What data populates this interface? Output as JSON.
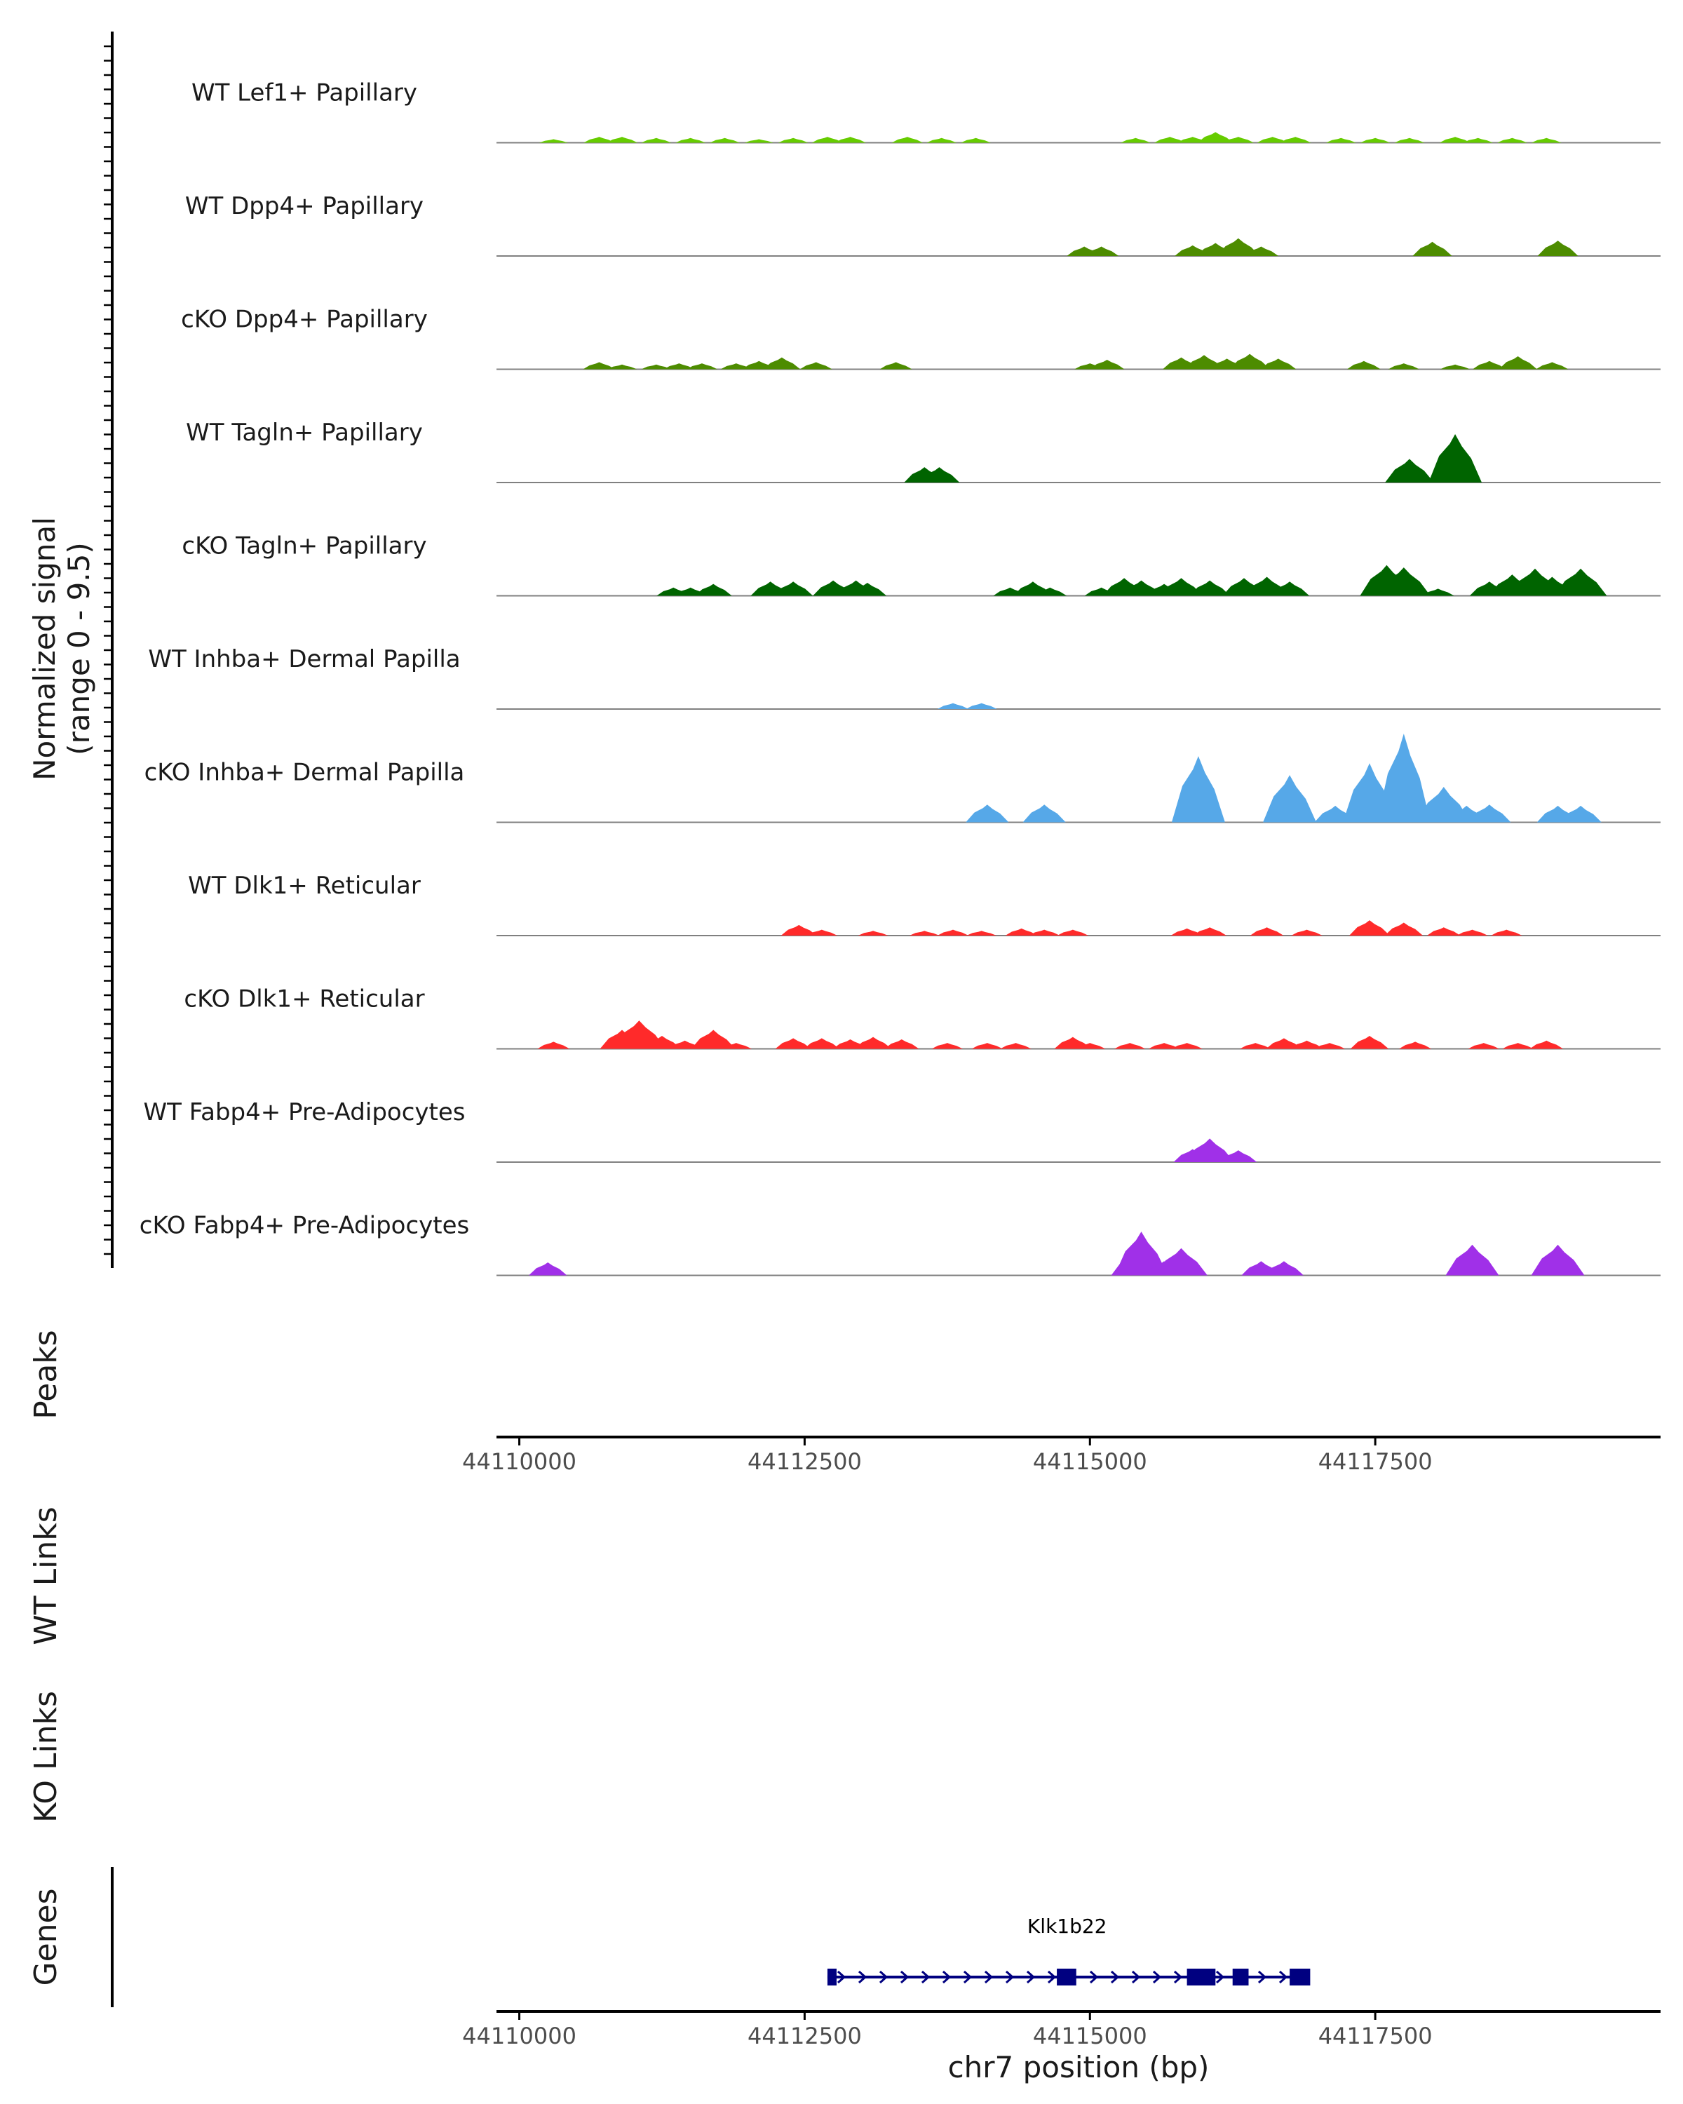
{
  "chart_data": {
    "type": "area",
    "title": "",
    "ylabel_line1": "Normalized signal",
    "ylabel_line2": "(range 0 - 9.5)",
    "ylim": [
      0,
      9.5
    ],
    "xlabel": "chr7 position (bp)",
    "xlim": [
      44109800,
      44120000
    ],
    "xticks": [
      44110000,
      44112500,
      44115000,
      44117500
    ],
    "xtick_labels": [
      "44110000",
      "44112500",
      "44115000",
      "44117500"
    ],
    "tracks": [
      {
        "name": "WT Lef1+ Papillary",
        "color": "#66cc00",
        "peaks": [
          [
            44110300,
            0.3
          ],
          [
            44110700,
            0.5
          ],
          [
            44110900,
            0.5
          ],
          [
            44111200,
            0.4
          ],
          [
            44111500,
            0.4
          ],
          [
            44111800,
            0.4
          ],
          [
            44112100,
            0.3
          ],
          [
            44112400,
            0.4
          ],
          [
            44112700,
            0.5
          ],
          [
            44112900,
            0.5
          ],
          [
            44113400,
            0.5
          ],
          [
            44113700,
            0.4
          ],
          [
            44114000,
            0.4
          ],
          [
            44115400,
            0.4
          ],
          [
            44115700,
            0.5
          ],
          [
            44115900,
            0.5
          ],
          [
            44116100,
            0.9
          ],
          [
            44116300,
            0.5
          ],
          [
            44116600,
            0.5
          ],
          [
            44116800,
            0.5
          ],
          [
            44117200,
            0.4
          ],
          [
            44117500,
            0.4
          ],
          [
            44117800,
            0.4
          ],
          [
            44118200,
            0.5
          ],
          [
            44118400,
            0.4
          ],
          [
            44118700,
            0.4
          ],
          [
            44119000,
            0.4
          ]
        ]
      },
      {
        "name": "WT Dpp4+ Papillary",
        "color": "#4d8c00",
        "peaks": [
          [
            44114950,
            0.8
          ],
          [
            44115100,
            0.8
          ],
          [
            44115900,
            0.9
          ],
          [
            44116100,
            1.1
          ],
          [
            44116300,
            1.5
          ],
          [
            44116500,
            0.8
          ],
          [
            44118000,
            1.2
          ],
          [
            44119100,
            1.3
          ]
        ]
      },
      {
        "name": "cKO Dpp4+ Papillary",
        "color": "#4d8c00",
        "peaks": [
          [
            44110700,
            0.6
          ],
          [
            44110900,
            0.4
          ],
          [
            44111200,
            0.4
          ],
          [
            44111400,
            0.5
          ],
          [
            44111600,
            0.5
          ],
          [
            44111900,
            0.5
          ],
          [
            44112100,
            0.7
          ],
          [
            44112300,
            1.0
          ],
          [
            44112600,
            0.6
          ],
          [
            44113300,
            0.6
          ],
          [
            44115000,
            0.5
          ],
          [
            44115150,
            0.8
          ],
          [
            44115800,
            1.0
          ],
          [
            44116000,
            1.2
          ],
          [
            44116200,
            0.9
          ],
          [
            44116400,
            1.3
          ],
          [
            44116650,
            0.9
          ],
          [
            44117400,
            0.7
          ],
          [
            44117750,
            0.5
          ],
          [
            44118200,
            0.4
          ],
          [
            44118500,
            0.7
          ],
          [
            44118750,
            1.1
          ],
          [
            44119050,
            0.6
          ]
        ]
      },
      {
        "name": "WT Tagln+ Papillary",
        "color": "#006400",
        "peaks": [
          [
            44113550,
            1.3
          ],
          [
            44113680,
            1.3
          ],
          [
            44117800,
            2.0
          ],
          [
            44118200,
            4.1
          ]
        ]
      },
      {
        "name": "cKO Tagln+ Papillary",
        "color": "#006400",
        "peaks": [
          [
            44111350,
            0.7
          ],
          [
            44111500,
            0.7
          ],
          [
            44111700,
            1.0
          ],
          [
            44112200,
            1.2
          ],
          [
            44112400,
            1.2
          ],
          [
            44112750,
            1.3
          ],
          [
            44112950,
            1.3
          ],
          [
            44113050,
            1.1
          ],
          [
            44114300,
            0.7
          ],
          [
            44114500,
            1.2
          ],
          [
            44114650,
            0.7
          ],
          [
            44115100,
            0.7
          ],
          [
            44115300,
            1.5
          ],
          [
            44115450,
            1.3
          ],
          [
            44115650,
            1.0
          ],
          [
            44115800,
            1.5
          ],
          [
            44116050,
            1.3
          ],
          [
            44116350,
            1.5
          ],
          [
            44116550,
            1.6
          ],
          [
            44116750,
            1.2
          ],
          [
            44117600,
            2.6
          ],
          [
            44117750,
            2.4
          ],
          [
            44118050,
            0.6
          ],
          [
            44118500,
            1.2
          ],
          [
            44118700,
            1.8
          ],
          [
            44118900,
            2.3
          ],
          [
            44119050,
            1.6
          ],
          [
            44119300,
            2.3
          ]
        ]
      },
      {
        "name": "WT Inhba+ Dermal Papilla",
        "color": "#56a8e8",
        "peaks": [
          [
            44113800,
            0.5
          ],
          [
            44114050,
            0.5
          ]
        ]
      },
      {
        "name": "cKO Inhba+ Dermal Papilla",
        "color": "#56a8e8",
        "peaks": [
          [
            44114100,
            1.5
          ],
          [
            44114600,
            1.5
          ],
          [
            44115950,
            5.6
          ],
          [
            44116750,
            4.0
          ],
          [
            44117150,
            1.4
          ],
          [
            44117450,
            5.0
          ],
          [
            44117750,
            7.5
          ],
          [
            44118100,
            3.0
          ],
          [
            44118300,
            1.4
          ],
          [
            44118500,
            1.5
          ],
          [
            44119100,
            1.4
          ],
          [
            44119300,
            1.4
          ]
        ]
      },
      {
        "name": "WT Dlk1+ Reticular",
        "color": "#ff2a2a",
        "peaks": [
          [
            44112450,
            0.9
          ],
          [
            44112650,
            0.5
          ],
          [
            44113100,
            0.4
          ],
          [
            44113550,
            0.4
          ],
          [
            44113800,
            0.5
          ],
          [
            44114050,
            0.4
          ],
          [
            44114400,
            0.6
          ],
          [
            44114600,
            0.5
          ],
          [
            44114850,
            0.5
          ],
          [
            44115850,
            0.6
          ],
          [
            44116050,
            0.7
          ],
          [
            44116550,
            0.7
          ],
          [
            44116900,
            0.5
          ],
          [
            44117450,
            1.3
          ],
          [
            44117750,
            1.1
          ],
          [
            44118100,
            0.7
          ],
          [
            44118350,
            0.5
          ],
          [
            44118650,
            0.5
          ]
        ]
      },
      {
        "name": "cKO Dlk1+ Reticular",
        "color": "#ff2a2a",
        "peaks": [
          [
            44110300,
            0.6
          ],
          [
            44110900,
            1.6
          ],
          [
            44111050,
            2.4
          ],
          [
            44111250,
            1.1
          ],
          [
            44111450,
            0.7
          ],
          [
            44111700,
            1.6
          ],
          [
            44111900,
            0.5
          ],
          [
            44112400,
            0.9
          ],
          [
            44112650,
            0.9
          ],
          [
            44112900,
            0.8
          ],
          [
            44113100,
            1.0
          ],
          [
            44113350,
            0.8
          ],
          [
            44113750,
            0.5
          ],
          [
            44114100,
            0.5
          ],
          [
            44114350,
            0.5
          ],
          [
            44114850,
            1.0
          ],
          [
            44115000,
            0.5
          ],
          [
            44115350,
            0.5
          ],
          [
            44115650,
            0.5
          ],
          [
            44115850,
            0.5
          ],
          [
            44116450,
            0.5
          ],
          [
            44116700,
            0.9
          ],
          [
            44116900,
            0.7
          ],
          [
            44117100,
            0.5
          ],
          [
            44117450,
            1.1
          ],
          [
            44117850,
            0.6
          ],
          [
            44118450,
            0.5
          ],
          [
            44118750,
            0.5
          ],
          [
            44119000,
            0.7
          ]
        ]
      },
      {
        "name": "WT Fabp4+ Pre-Adipocytes",
        "color": "#a030e8",
        "peaks": [
          [
            44115900,
            1.1
          ],
          [
            44116050,
            2.0
          ],
          [
            44116300,
            1.0
          ]
        ]
      },
      {
        "name": "cKO Fabp4+ Pre-Adipocytes",
        "color": "#a030e8",
        "peaks": [
          [
            44110250,
            1.1
          ],
          [
            44115400,
            2.0
          ],
          [
            44115450,
            3.7
          ],
          [
            44115650,
            1.2
          ],
          [
            44115800,
            2.3
          ],
          [
            44116500,
            1.2
          ],
          [
            44116700,
            1.2
          ],
          [
            44118350,
            2.6
          ],
          [
            44119100,
            2.6
          ]
        ]
      }
    ],
    "peaks_label": "Peaks",
    "wt_links_label": "WT Links",
    "ko_links_label": "KO Links",
    "genes_label": "Genes",
    "gene": {
      "name": "Klk1b22",
      "start": 44112700,
      "end": 44116900,
      "strand": "+",
      "exons": [
        [
          44112700,
          44112780
        ],
        [
          44114710,
          44114880
        ],
        [
          44115850,
          44116100
        ],
        [
          44116250,
          44116390
        ],
        [
          44116750,
          44116930
        ]
      ],
      "color": "#000080"
    }
  }
}
